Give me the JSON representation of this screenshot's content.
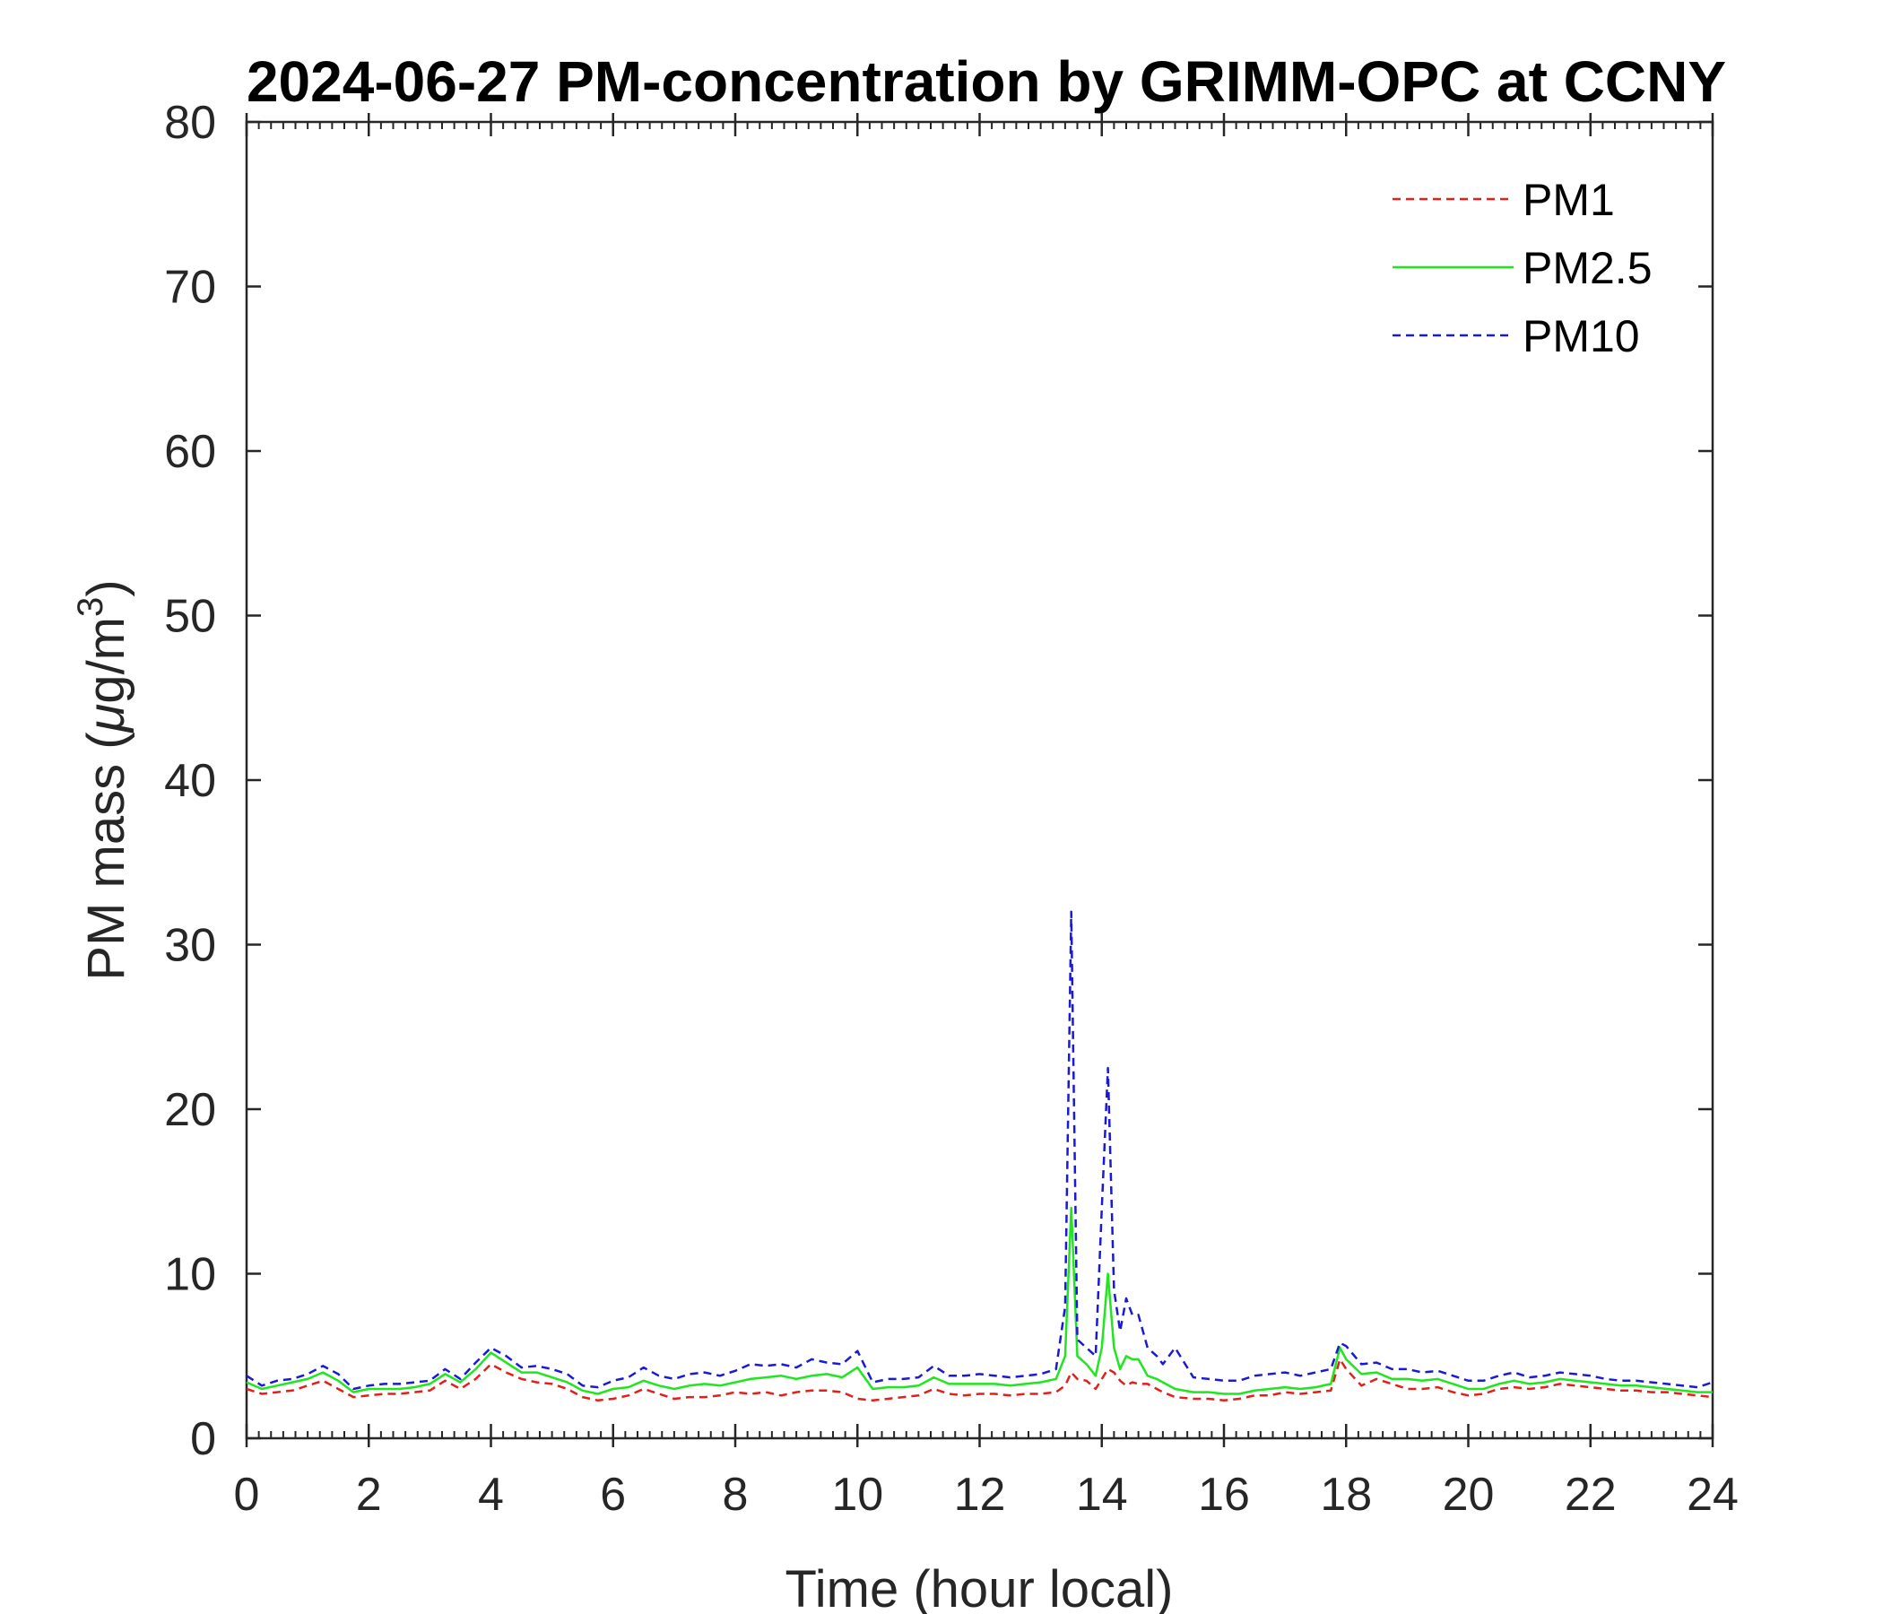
{
  "chart_data": {
    "type": "line",
    "title": "2024-06-27 PM-concentration by GRIMM-OPC at CCNY",
    "xlabel": "Time (hour local)",
    "ylabel": {
      "prefix": "PM mass (",
      "mu": "μ",
      "unit": "g/m",
      "sup": "3",
      "suffix": ")"
    },
    "xlim": [
      0,
      24
    ],
    "ylim": [
      0,
      80
    ],
    "x_ticks": [
      0,
      2,
      4,
      6,
      8,
      10,
      12,
      14,
      16,
      18,
      20,
      22,
      24
    ],
    "x_tick_labels": [
      "0",
      "2",
      "4",
      "6",
      "8",
      "10",
      "12",
      "14",
      "16",
      "18",
      "20",
      "22",
      "24"
    ],
    "y_ticks": [
      0,
      10,
      20,
      30,
      40,
      50,
      60,
      70,
      80
    ],
    "y_tick_labels": [
      "0",
      "10",
      "20",
      "30",
      "40",
      "50",
      "60",
      "70",
      "80"
    ],
    "x_minor_step": 0.2,
    "grid": false,
    "legend_position": "top-right",
    "x": [
      0,
      0.25,
      0.5,
      0.75,
      1.0,
      1.25,
      1.5,
      1.75,
      2.0,
      2.25,
      2.5,
      2.75,
      3.0,
      3.25,
      3.5,
      3.75,
      4.0,
      4.25,
      4.5,
      4.75,
      5.0,
      5.25,
      5.5,
      5.75,
      6.0,
      6.25,
      6.5,
      6.75,
      7.0,
      7.25,
      7.5,
      7.75,
      8.0,
      8.25,
      8.5,
      8.75,
      9.0,
      9.25,
      9.5,
      9.75,
      10.0,
      10.25,
      10.5,
      10.75,
      11.0,
      11.25,
      11.5,
      11.75,
      12.0,
      12.25,
      12.5,
      12.75,
      13.0,
      13.25,
      13.4,
      13.5,
      13.6,
      13.75,
      13.9,
      14.0,
      14.1,
      14.2,
      14.3,
      14.4,
      14.5,
      14.6,
      14.75,
      14.9,
      15.0,
      15.2,
      15.5,
      15.75,
      16.0,
      16.25,
      16.5,
      16.75,
      17.0,
      17.25,
      17.5,
      17.75,
      17.9,
      18.0,
      18.25,
      18.5,
      18.75,
      19.0,
      19.25,
      19.5,
      19.75,
      20.0,
      20.25,
      20.5,
      20.75,
      21.0,
      21.25,
      21.5,
      21.75,
      22.0,
      22.25,
      22.5,
      22.75,
      23.0,
      23.25,
      23.5,
      23.75,
      24.0
    ],
    "series": [
      {
        "name": "PM1",
        "color": "#e0201b",
        "dash": "dashed",
        "values": [
          3.0,
          2.7,
          2.8,
          2.9,
          3.2,
          3.5,
          3.0,
          2.5,
          2.6,
          2.7,
          2.7,
          2.8,
          2.9,
          3.5,
          3.0,
          3.6,
          4.5,
          4.0,
          3.6,
          3.4,
          3.3,
          3.0,
          2.5,
          2.3,
          2.4,
          2.6,
          3.0,
          2.7,
          2.4,
          2.5,
          2.5,
          2.6,
          2.8,
          2.7,
          2.8,
          2.6,
          2.8,
          2.9,
          2.9,
          2.8,
          2.4,
          2.3,
          2.4,
          2.5,
          2.6,
          3.0,
          2.7,
          2.6,
          2.7,
          2.7,
          2.6,
          2.7,
          2.7,
          2.8,
          3.2,
          4.0,
          3.6,
          3.5,
          3.0,
          3.6,
          4.2,
          4.0,
          3.5,
          3.2,
          3.4,
          3.3,
          3.3,
          3.0,
          2.8,
          2.5,
          2.4,
          2.4,
          2.3,
          2.4,
          2.6,
          2.6,
          2.8,
          2.7,
          2.8,
          2.9,
          4.8,
          4.2,
          3.2,
          3.6,
          3.3,
          3.0,
          3.0,
          3.1,
          2.8,
          2.6,
          2.7,
          3.0,
          3.1,
          3.0,
          3.1,
          3.3,
          3.2,
          3.1,
          3.0,
          2.9,
          2.9,
          2.8,
          2.8,
          2.7,
          2.6,
          2.5
        ]
      },
      {
        "name": "PM2.5",
        "color": "#1fe61f",
        "dash": "solid",
        "values": [
          3.4,
          3.0,
          3.2,
          3.4,
          3.6,
          4.0,
          3.5,
          2.8,
          3.0,
          3.0,
          3.0,
          3.1,
          3.3,
          3.9,
          3.4,
          4.2,
          5.2,
          4.6,
          4.0,
          4.0,
          3.7,
          3.4,
          2.9,
          2.7,
          3.0,
          3.1,
          3.5,
          3.2,
          3.0,
          3.2,
          3.3,
          3.2,
          3.4,
          3.6,
          3.7,
          3.8,
          3.6,
          3.8,
          3.9,
          3.7,
          4.3,
          3.0,
          3.1,
          3.1,
          3.2,
          3.7,
          3.3,
          3.3,
          3.3,
          3.3,
          3.2,
          3.3,
          3.4,
          3.6,
          5.0,
          14.0,
          5.0,
          4.5,
          3.8,
          5.5,
          10.0,
          5.5,
          4.2,
          5.0,
          4.8,
          4.8,
          3.8,
          3.6,
          3.4,
          3.0,
          2.8,
          2.8,
          2.7,
          2.7,
          2.9,
          3.0,
          3.1,
          3.0,
          3.1,
          3.3,
          5.5,
          4.8,
          3.9,
          4.0,
          3.6,
          3.6,
          3.5,
          3.6,
          3.3,
          3.0,
          3.0,
          3.3,
          3.5,
          3.3,
          3.4,
          3.6,
          3.5,
          3.4,
          3.3,
          3.2,
          3.2,
          3.1,
          3.0,
          2.9,
          2.8,
          2.8
        ]
      },
      {
        "name": "PM10",
        "color": "#1a1ad6",
        "dash": "dashed",
        "values": [
          3.8,
          3.2,
          3.5,
          3.6,
          3.9,
          4.4,
          3.9,
          3.0,
          3.2,
          3.3,
          3.3,
          3.4,
          3.5,
          4.2,
          3.6,
          4.6,
          5.5,
          5.0,
          4.3,
          4.4,
          4.2,
          3.9,
          3.2,
          3.1,
          3.5,
          3.7,
          4.3,
          3.8,
          3.6,
          3.9,
          4.0,
          3.8,
          4.1,
          4.5,
          4.4,
          4.5,
          4.3,
          4.8,
          4.6,
          4.5,
          5.3,
          3.4,
          3.6,
          3.6,
          3.7,
          4.4,
          3.8,
          3.8,
          3.9,
          3.8,
          3.7,
          3.8,
          3.9,
          4.2,
          8.0,
          32.0,
          6.0,
          5.5,
          5.0,
          14.0,
          22.5,
          9.0,
          6.5,
          8.5,
          7.5,
          7.5,
          5.5,
          5.0,
          4.5,
          5.5,
          3.7,
          3.6,
          3.5,
          3.5,
          3.8,
          3.9,
          4.0,
          3.8,
          4.0,
          4.2,
          5.8,
          5.6,
          4.5,
          4.6,
          4.2,
          4.2,
          4.0,
          4.1,
          3.8,
          3.5,
          3.5,
          3.8,
          4.0,
          3.7,
          3.8,
          4.0,
          3.9,
          3.8,
          3.6,
          3.5,
          3.5,
          3.4,
          3.3,
          3.2,
          3.1,
          3.4
        ]
      }
    ]
  }
}
